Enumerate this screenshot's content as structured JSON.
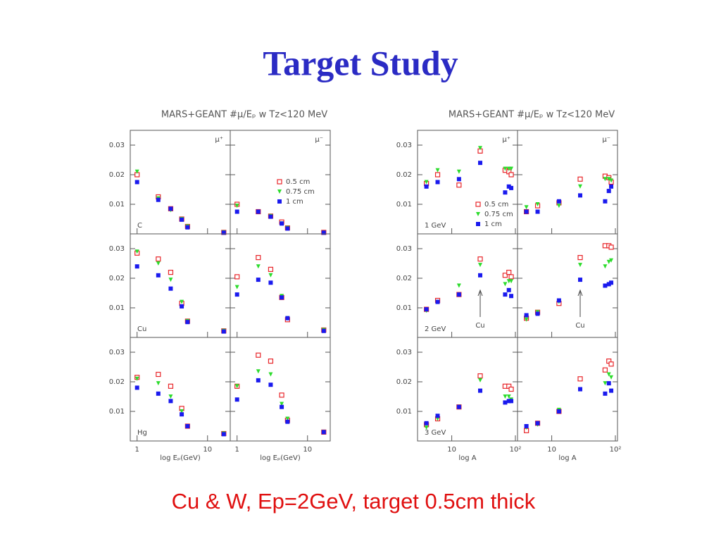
{
  "title": "Target Study",
  "caption": "Cu & W, Ep=2GeV, target 0.5cm thick",
  "figure_headers": [
    "MARS+GEANT #μ/Eₚ w Tz<120 MeV",
    "MARS+GEANT #μ/Eₚ w Tz<120 MeV"
  ],
  "chart_data": [
    {
      "type": "scatter",
      "panel_label": "C",
      "corner_label": "μ⁺",
      "log_x": true,
      "x": [
        1,
        2,
        3,
        4.3,
        5.2,
        17
      ],
      "xlim": [
        0.8,
        21
      ],
      "xticks": [
        1,
        10
      ],
      "ylim": [
        0,
        0.035
      ],
      "yticks": [
        0.01,
        0.02,
        0.03
      ],
      "series": [
        {
          "color": "#e8262a",
          "marker": "open-square",
          "values": [
            0.02,
            0.0125,
            0.0085,
            0.005,
            0.0025,
            0.0005
          ]
        },
        {
          "color": "#2ddc2d",
          "marker": "triangle",
          "values": [
            0.021,
            0.012,
            0.008,
            0.005,
            0.0025,
            0.0005
          ]
        },
        {
          "color": "#1a1aee",
          "marker": "square",
          "values": [
            0.0175,
            0.0115,
            0.0085,
            0.0048,
            0.0022,
            0.0004
          ]
        }
      ]
    },
    {
      "type": "scatter",
      "corner_label": "μ⁻",
      "legend": "center-right",
      "log_x": true,
      "x": [
        1,
        2,
        3,
        4.3,
        5.2,
        17
      ],
      "xlim": [
        0.8,
        21
      ],
      "xticks": [
        1,
        10
      ],
      "ylim": [
        0,
        0.035
      ],
      "yticks": [
        0.01,
        0.02,
        0.03
      ],
      "series": [
        {
          "name": "0.5 cm",
          "color": "#e8262a",
          "marker": "open-square",
          "values": [
            0.01,
            0.0075,
            0.006,
            0.004,
            0.002,
            0.0005
          ]
        },
        {
          "name": "0.75 cm",
          "color": "#2ddc2d",
          "marker": "triangle",
          "values": [
            0.0095,
            0.0075,
            0.006,
            0.0035,
            0.002,
            0.0004
          ]
        },
        {
          "name": "1 cm",
          "color": "#1a1aee",
          "marker": "square",
          "values": [
            0.0075,
            0.0075,
            0.0058,
            0.0035,
            0.0018,
            0.0004
          ]
        }
      ]
    },
    {
      "type": "scatter",
      "panel_label": "Cu",
      "log_x": true,
      "x": [
        1,
        2,
        3,
        4.3,
        5.2,
        17
      ],
      "xlim": [
        0.8,
        21
      ],
      "xticks": [
        1,
        10
      ],
      "ylim": [
        0,
        0.035
      ],
      "yticks": [
        0.01,
        0.02,
        0.03
      ],
      "series": [
        {
          "color": "#e8262a",
          "marker": "open-square",
          "values": [
            0.0285,
            0.0265,
            0.022,
            0.0115,
            0.0055,
            0.0022
          ]
        },
        {
          "color": "#2ddc2d",
          "marker": "triangle",
          "values": [
            0.029,
            0.025,
            0.0195,
            0.012,
            0.0055,
            0.0022
          ]
        },
        {
          "color": "#1a1aee",
          "marker": "square",
          "values": [
            0.024,
            0.021,
            0.0165,
            0.0105,
            0.0052,
            0.002
          ]
        }
      ]
    },
    {
      "type": "scatter",
      "log_x": true,
      "x": [
        1,
        2,
        3,
        4.3,
        5.2,
        17
      ],
      "xlim": [
        0.8,
        21
      ],
      "xticks": [
        1,
        10
      ],
      "ylim": [
        0,
        0.035
      ],
      "yticks": [
        0.01,
        0.02,
        0.03
      ],
      "series": [
        {
          "color": "#e8262a",
          "marker": "open-square",
          "values": [
            0.0205,
            0.027,
            0.023,
            0.0135,
            0.006,
            0.0025
          ]
        },
        {
          "color": "#2ddc2d",
          "marker": "triangle",
          "values": [
            0.017,
            0.024,
            0.021,
            0.014,
            0.0065,
            0.0025
          ]
        },
        {
          "color": "#1a1aee",
          "marker": "square",
          "values": [
            0.0145,
            0.0195,
            0.0185,
            0.0135,
            0.0065,
            0.0022
          ]
        }
      ]
    },
    {
      "type": "scatter",
      "panel_label": "Hg",
      "xlabel": "log Eₚ(GeV)",
      "log_x": true,
      "x": [
        1,
        2,
        3,
        4.3,
        5.2,
        17
      ],
      "xlim": [
        0.8,
        21
      ],
      "xticks": [
        1,
        10
      ],
      "ylim": [
        0,
        0.035
      ],
      "yticks": [
        0.01,
        0.02,
        0.03
      ],
      "series": [
        {
          "color": "#e8262a",
          "marker": "open-square",
          "values": [
            0.0215,
            0.0225,
            0.0185,
            0.011,
            0.005,
            0.0025
          ]
        },
        {
          "color": "#2ddc2d",
          "marker": "triangle",
          "values": [
            0.021,
            0.0195,
            0.015,
            0.01,
            0.005,
            0.0025
          ]
        },
        {
          "color": "#1a1aee",
          "marker": "square",
          "values": [
            0.018,
            0.016,
            0.0135,
            0.009,
            0.005,
            0.0023
          ]
        }
      ]
    },
    {
      "type": "scatter",
      "xlabel": "log Eₚ(GeV)",
      "log_x": true,
      "x": [
        1,
        2,
        3,
        4.3,
        5.2,
        17
      ],
      "xlim": [
        0.8,
        21
      ],
      "xticks": [
        1,
        10
      ],
      "ylim": [
        0,
        0.035
      ],
      "yticks": [
        0.01,
        0.02,
        0.03
      ],
      "series": [
        {
          "color": "#e8262a",
          "marker": "open-square",
          "values": [
            0.0185,
            0.029,
            0.027,
            0.0155,
            0.007,
            0.003
          ]
        },
        {
          "color": "#2ddc2d",
          "marker": "triangle",
          "values": [
            0.0185,
            0.0235,
            0.0225,
            0.0125,
            0.0075,
            0.003
          ]
        },
        {
          "color": "#1a1aee",
          "marker": "square",
          "values": [
            0.014,
            0.0205,
            0.019,
            0.0115,
            0.0065,
            0.003
          ]
        }
      ]
    },
    {
      "type": "scatter",
      "panel_label": "1 GeV",
      "corner_label": "μ⁺",
      "legend": "bottom-right",
      "log_x": true,
      "x": [
        4,
        6,
        13,
        28,
        69,
        79,
        86
      ],
      "xlim": [
        2.9,
        108
      ],
      "xticks": [
        10,
        {
          "value": 100,
          "label": "10²"
        }
      ],
      "ylim": [
        0,
        0.035
      ],
      "yticks": [
        0.01,
        0.02,
        0.03
      ],
      "series": [
        {
          "name": "0.5 cm",
          "color": "#e8262a",
          "marker": "open-square",
          "values": [
            0.017,
            0.02,
            0.0165,
            0.028,
            0.0215,
            0.021,
            0.02
          ]
        },
        {
          "name": "0.75 cm",
          "color": "#2ddc2d",
          "marker": "triangle",
          "values": [
            0.0175,
            0.0215,
            0.021,
            0.029,
            0.022,
            0.022,
            0.022
          ]
        },
        {
          "name": "1 cm",
          "color": "#1a1aee",
          "marker": "square",
          "values": [
            0.016,
            0.0175,
            0.0185,
            0.024,
            0.014,
            0.016,
            0.0155
          ]
        }
      ]
    },
    {
      "type": "scatter",
      "corner_label": "μ⁻",
      "log_x": true,
      "x": [
        4,
        6,
        13,
        28,
        69,
        79,
        86
      ],
      "xlim": [
        2.9,
        108
      ],
      "xticks": [
        10,
        {
          "value": 100,
          "label": "10²"
        }
      ],
      "ylim": [
        0,
        0.035
      ],
      "yticks": [
        0.01,
        0.02,
        0.03
      ],
      "series": [
        {
          "color": "#e8262a",
          "marker": "open-square",
          "values": [
            0.0075,
            0.0095,
            0.0105,
            0.0185,
            0.0195,
            0.019,
            0.0175
          ]
        },
        {
          "color": "#2ddc2d",
          "marker": "triangle",
          "values": [
            0.009,
            0.01,
            0.0095,
            0.016,
            0.0185,
            0.0185,
            0.018
          ]
        },
        {
          "color": "#1a1aee",
          "marker": "square",
          "values": [
            0.0075,
            0.0075,
            0.011,
            0.013,
            0.011,
            0.0145,
            0.016
          ]
        }
      ]
    },
    {
      "type": "scatter",
      "panel_label": "2 GeV",
      "annotation": "Cu",
      "log_x": true,
      "x": [
        4,
        6,
        13,
        28,
        69,
        79,
        86
      ],
      "xlim": [
        2.9,
        108
      ],
      "xticks": [
        10,
        {
          "value": 100,
          "label": "10²"
        }
      ],
      "ylim": [
        0,
        0.035
      ],
      "yticks": [
        0.01,
        0.02,
        0.03
      ],
      "series": [
        {
          "color": "#e8262a",
          "marker": "open-square",
          "values": [
            0.0095,
            0.0125,
            0.0145,
            0.0265,
            0.021,
            0.022,
            0.0205
          ]
        },
        {
          "color": "#2ddc2d",
          "marker": "triangle",
          "values": [
            0.009,
            0.012,
            0.0175,
            0.0245,
            0.018,
            0.019,
            0.019
          ]
        },
        {
          "color": "#1a1aee",
          "marker": "square",
          "values": [
            0.0095,
            0.012,
            0.0145,
            0.021,
            0.0145,
            0.016,
            0.014
          ]
        }
      ]
    },
    {
      "type": "scatter",
      "annotation": "Cu",
      "log_x": true,
      "x": [
        4,
        6,
        13,
        28,
        69,
        79,
        86
      ],
      "xlim": [
        2.9,
        108
      ],
      "xticks": [
        10,
        {
          "value": 100,
          "label": "10²"
        }
      ],
      "ylim": [
        0,
        0.035
      ],
      "yticks": [
        0.01,
        0.02,
        0.03
      ],
      "series": [
        {
          "color": "#e8262a",
          "marker": "open-square",
          "values": [
            0.0065,
            0.0085,
            0.0115,
            0.027,
            0.031,
            0.031,
            0.0305
          ]
        },
        {
          "color": "#2ddc2d",
          "marker": "triangle",
          "values": [
            0.006,
            0.0085,
            0.012,
            0.0245,
            0.024,
            0.0255,
            0.026
          ]
        },
        {
          "color": "#1a1aee",
          "marker": "square",
          "values": [
            0.0075,
            0.008,
            0.0125,
            0.0195,
            0.0175,
            0.018,
            0.0185
          ]
        }
      ]
    },
    {
      "type": "scatter",
      "panel_label": "3 GeV",
      "xlabel": "log A",
      "log_x": true,
      "x": [
        4,
        6,
        13,
        28,
        69,
        79,
        86
      ],
      "xlim": [
        2.9,
        108
      ],
      "xticks": [
        10,
        {
          "value": 100,
          "label": "10²"
        }
      ],
      "ylim": [
        0,
        0.035
      ],
      "yticks": [
        0.01,
        0.02,
        0.03
      ],
      "series": [
        {
          "color": "#e8262a",
          "marker": "open-square",
          "values": [
            0.0055,
            0.0075,
            0.0115,
            0.022,
            0.0185,
            0.0185,
            0.0175
          ]
        },
        {
          "color": "#2ddc2d",
          "marker": "triangle",
          "values": [
            0.0045,
            0.0075,
            0.0115,
            0.0205,
            0.015,
            0.015,
            0.014
          ]
        },
        {
          "color": "#1a1aee",
          "marker": "square",
          "values": [
            0.006,
            0.0085,
            0.0115,
            0.017,
            0.013,
            0.0135,
            0.0135
          ]
        }
      ]
    },
    {
      "type": "scatter",
      "xlabel": "log A",
      "log_x": true,
      "x": [
        4,
        6,
        13,
        28,
        69,
        79,
        86
      ],
      "xlim": [
        2.9,
        108
      ],
      "xticks": [
        10,
        {
          "value": 100,
          "label": "10²"
        }
      ],
      "ylim": [
        0,
        0.035
      ],
      "yticks": [
        0.01,
        0.02,
        0.03
      ],
      "series": [
        {
          "color": "#e8262a",
          "marker": "open-square",
          "values": [
            0.0035,
            0.006,
            0.01,
            0.021,
            0.024,
            0.027,
            0.026
          ]
        },
        {
          "color": "#2ddc2d",
          "marker": "triangle",
          "values": [
            0.0045,
            0.0055,
            0.0105,
            0.0175,
            0.0195,
            0.0225,
            0.0215
          ]
        },
        {
          "color": "#1a1aee",
          "marker": "square",
          "values": [
            0.005,
            0.006,
            0.01,
            0.0175,
            0.016,
            0.0195,
            0.017
          ]
        }
      ]
    }
  ]
}
